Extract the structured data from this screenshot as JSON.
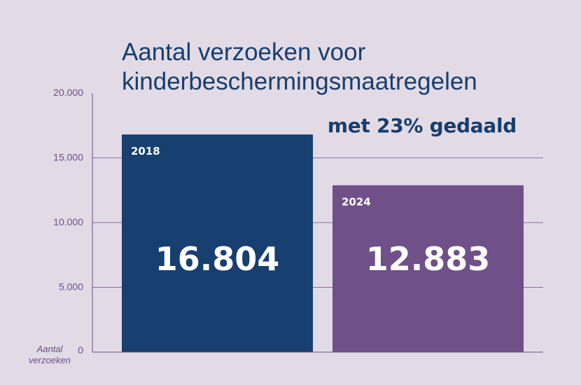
{
  "chart_data": {
    "type": "bar",
    "title": "Aantal verzoeken voor kinderbeschermingsmaatregelen",
    "title_lines": [
      "Aantal verzoeken voor",
      "kinderbeschermingsmaatregelen"
    ],
    "subtitle": "met 23% gedaald",
    "ylabel": "Aantal verzoeken",
    "categories": [
      "2018",
      "2024"
    ],
    "values": [
      16804,
      12883
    ],
    "value_labels": [
      "16.804",
      "12.883"
    ],
    "bar_colors": [
      "#173f70",
      "#6f5088"
    ],
    "ylim": [
      0,
      20000
    ],
    "yticks": [
      0,
      5000,
      10000,
      15000,
      20000
    ],
    "ytick_labels": [
      "0",
      "5.000",
      "10.000",
      "15.000",
      "20.000"
    ],
    "grid": true,
    "axis_color": "#6a4f86",
    "grid_color": "#8a6fa0"
  }
}
